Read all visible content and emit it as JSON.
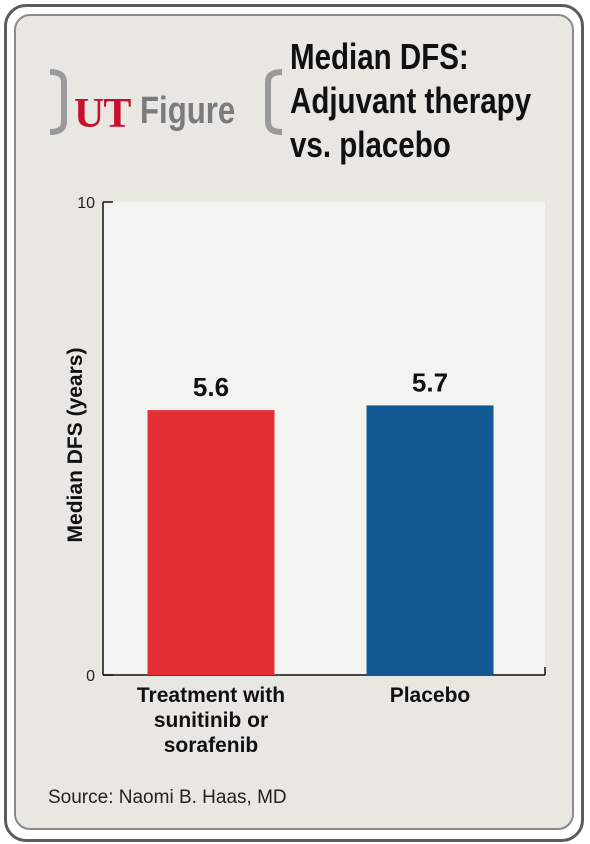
{
  "brand": {
    "ut": "UT",
    "figure": "Figure"
  },
  "title_lines": [
    "Median DFS:",
    "Adjuvant therapy",
    "vs. placebo"
  ],
  "colors": {
    "treatment": "#e32f33",
    "placebo": "#135a94",
    "brand_red": "#c8102e"
  },
  "chart_data": {
    "type": "bar",
    "title": "Median DFS: Adjuvant therapy vs. placebo",
    "ylabel": "Median DFS (years)",
    "xlabel": "",
    "ylim": [
      0,
      10
    ],
    "yticks": [
      "0",
      "10"
    ],
    "categories": [
      "Treatment with sunitinib or sorafenib",
      "Placebo"
    ],
    "category_lines": [
      [
        "Treatment with",
        "sunitinib or",
        "sorafenib"
      ],
      [
        "Placebo"
      ]
    ],
    "values": [
      5.6,
      5.7
    ],
    "value_labels": [
      "5.6",
      "5.7"
    ],
    "grid": false
  },
  "source": "Source: Naomi B. Haas, MD"
}
